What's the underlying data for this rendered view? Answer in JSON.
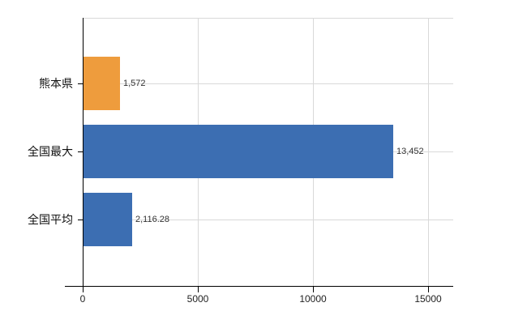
{
  "chart_data": {
    "type": "bar",
    "orientation": "horizontal",
    "title": "",
    "categories": [
      "熊本県",
      "全国最大",
      "全国平均"
    ],
    "values": [
      1572,
      13452,
      2116.28
    ],
    "value_labels": [
      "1,572",
      "13,452",
      "2,116.28"
    ],
    "bar_colors": [
      "#ee9c3d",
      "#3c6eb2",
      "#3c6eb2"
    ],
    "x_ticks": [
      0,
      5000,
      10000,
      15000
    ],
    "x_tick_labels": [
      "0",
      "5000",
      "10000",
      "15000"
    ],
    "xlim": [
      0,
      16090
    ],
    "grid": true,
    "legend": false,
    "colors": {
      "axis": "#000000",
      "grid": "#d9d9d9",
      "value_label": "#333333",
      "category_label": "#111111",
      "background": "#ffffff"
    }
  }
}
